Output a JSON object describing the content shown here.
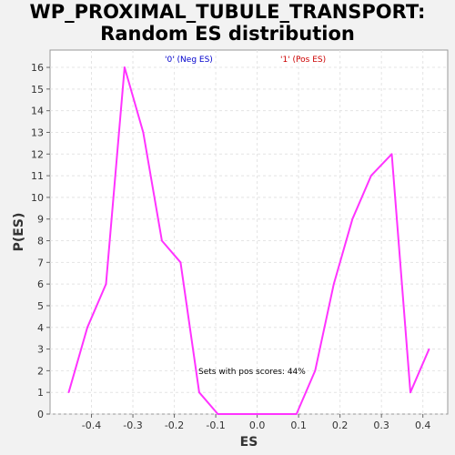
{
  "title_line1": "WP_PROXIMAL_TUBULE_TRANSPORT:",
  "title_line2": "Random ES distribution",
  "chart_data": {
    "type": "line",
    "xlabel": "ES",
    "ylabel": "P(ES)",
    "xlim": [
      -0.5,
      0.46
    ],
    "ylim": [
      0,
      16.8
    ],
    "x_ticks": [
      -0.4,
      -0.3,
      -0.2,
      -0.1,
      0.0,
      0.1,
      0.2,
      0.3,
      0.4
    ],
    "x_tick_labels": [
      "-0.4",
      "-0.3",
      "-0.2",
      "-0.1",
      "0.0",
      "0.1",
      "0.2",
      "0.3",
      "0.4"
    ],
    "y_ticks": [
      0,
      1,
      2,
      3,
      4,
      5,
      6,
      7,
      8,
      9,
      10,
      11,
      12,
      13,
      14,
      15,
      16
    ],
    "y_tick_labels": [
      "0",
      "1",
      "2",
      "3",
      "4",
      "5",
      "6",
      "7",
      "8",
      "9",
      "10",
      "11",
      "12",
      "13",
      "14",
      "15",
      "16"
    ],
    "grid": true,
    "legend": [
      {
        "label": "'0' (Neg ES)",
        "color": "#0000cc"
      },
      {
        "label": "'1' (Pos ES)",
        "color": "#cc0000"
      }
    ],
    "annotation": "Sets with pos scores: 44%",
    "series": [
      {
        "color": "#ff33ff",
        "x": [
          -0.455,
          -0.41,
          -0.365,
          -0.32,
          -0.275,
          -0.23,
          -0.185,
          -0.14,
          -0.095,
          -0.05,
          -0.005,
          0.04,
          0.095,
          0.14,
          0.185,
          0.23,
          0.275,
          0.325,
          0.37,
          0.415
        ],
        "y": [
          1,
          4,
          6,
          16,
          13,
          8,
          7,
          1,
          0,
          0,
          0,
          0,
          0,
          2,
          6,
          9,
          11,
          12,
          1,
          3
        ]
      }
    ]
  }
}
